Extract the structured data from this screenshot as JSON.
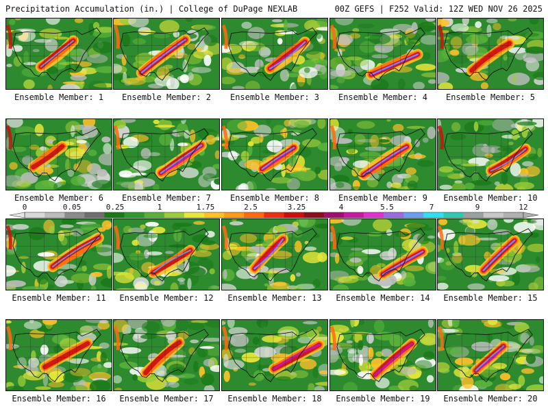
{
  "header": {
    "title": "Precipitation Accumulation (in.) | College of DuPage NEXLAB",
    "valid": "00Z GEFS | F252 Valid: 12Z WED NOV 26 2025"
  },
  "legend": {
    "tick_labels": [
      "0",
      "0.05",
      "0.25",
      "1",
      "1.75",
      "2.5",
      "3.25",
      "4",
      "5.5",
      "7",
      "9",
      "12"
    ],
    "colors": [
      "#d9d9d9",
      "#bdbdbd",
      "#8c8c8c",
      "#6e6e6e",
      "#1a7a1a",
      "#2e9a2e",
      "#58b23a",
      "#9ccc3a",
      "#e8e83a",
      "#ffc12a",
      "#ff9a1a",
      "#ff6a10",
      "#e83010",
      "#c81010",
      "#8a0e1e",
      "#a0106a",
      "#c81aa0",
      "#e030d0",
      "#9a6ae0",
      "#6aa0f0",
      "#30e0f0",
      "#30c8b0",
      "#9aa0a0",
      "#c8c8c8",
      "#b0b0b0"
    ]
  },
  "members": [
    {
      "label": "Ensemble Member: 1"
    },
    {
      "label": "Ensemble Member: 2"
    },
    {
      "label": "Ensemble Member: 3"
    },
    {
      "label": "Ensemble Member: 4"
    },
    {
      "label": "Ensemble Member: 5"
    },
    {
      "label": "Ensemble Member: 6"
    },
    {
      "label": "Ensemble Member: 7"
    },
    {
      "label": "Ensemble Member: 8"
    },
    {
      "label": "Ensemble Member: 9"
    },
    {
      "label": "Ensemble Member: 10"
    },
    {
      "label": "Ensemble Member: 11"
    },
    {
      "label": "Ensemble Member: 12"
    },
    {
      "label": "Ensemble Member: 13"
    },
    {
      "label": "Ensemble Member: 14"
    },
    {
      "label": "Ensemble Member: 15"
    },
    {
      "label": "Ensemble Member: 16"
    },
    {
      "label": "Ensemble Member: 17"
    },
    {
      "label": "Ensemble Member: 18"
    },
    {
      "label": "Ensemble Member: 19"
    },
    {
      "label": "Ensemble Member: 20"
    }
  ]
}
